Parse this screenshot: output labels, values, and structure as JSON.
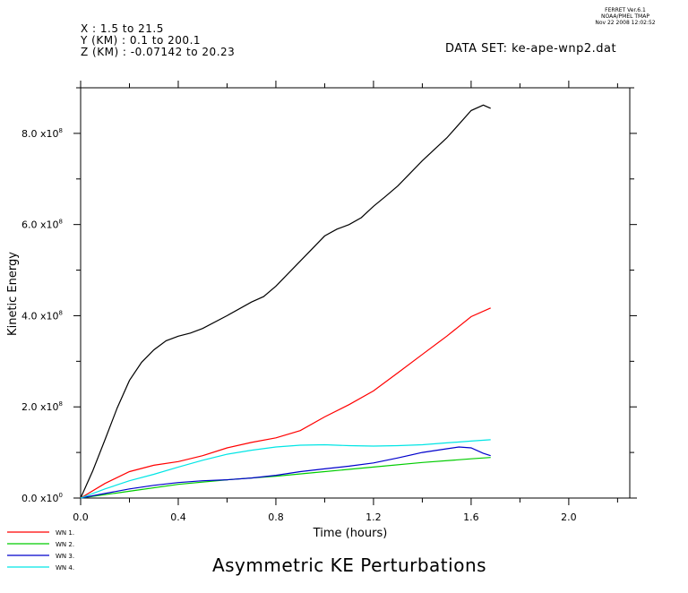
{
  "stamp": {
    "line1": "FERRET Ver.6.1",
    "line2": "NOAA/PMEL TMAP",
    "line3": "Nov 22 2008 12:02:52"
  },
  "header": {
    "x_range": "X : 1.5 to 21.5",
    "y_range": "Y (KM) : 0.1 to 200.1",
    "z_range": "Z (KM) : -0.07142 to 20.23",
    "dataset": "DATA SET: ke-ape-wnp2.dat"
  },
  "chart_data": {
    "type": "line",
    "title": "Asymmetric KE Perturbations",
    "xlabel": "Time (hours)",
    "ylabel": "Kinetic Energy",
    "xlim": [
      0.0,
      2.25
    ],
    "ylim": [
      0.0,
      900000000.0
    ],
    "x_ticks": [
      "0.0",
      "0.4",
      "0.8",
      "1.2",
      "1.6",
      "2.0"
    ],
    "x_tick_values": [
      0.0,
      0.4,
      0.8,
      1.2,
      1.6,
      2.0
    ],
    "y_ticks": [
      {
        "mant": "0.0 x10",
        "exp": "0",
        "value": 0
      },
      {
        "mant": "2.0 x10",
        "exp": "8",
        "value": 200000000.0
      },
      {
        "mant": "4.0 x10",
        "exp": "8",
        "value": 400000000.0
      },
      {
        "mant": "6.0 x10",
        "exp": "8",
        "value": 600000000.0
      },
      {
        "mant": "8.0 x10",
        "exp": "8",
        "value": 800000000.0
      }
    ],
    "series": [
      {
        "name": "",
        "color": "#000000",
        "x": [
          0.0,
          0.05,
          0.1,
          0.15,
          0.2,
          0.25,
          0.3,
          0.35,
          0.4,
          0.45,
          0.5,
          0.6,
          0.7,
          0.75,
          0.8,
          0.9,
          1.0,
          1.05,
          1.1,
          1.15,
          1.2,
          1.25,
          1.3,
          1.4,
          1.5,
          1.6,
          1.65,
          1.68
        ],
        "y": [
          0.0,
          60000000.0,
          128000000.0,
          198000000.0,
          258000000.0,
          298000000.0,
          325000000.0,
          345000000.0,
          355000000.0,
          362000000.0,
          372000000.0,
          400000000.0,
          430000000.0,
          442000000.0,
          465000000.0,
          520000000.0,
          575000000.0,
          590000000.0,
          600000000.0,
          615000000.0,
          640000000.0,
          662000000.0,
          685000000.0,
          740000000.0,
          790000000.0,
          850000000.0,
          862000000.0,
          855000000.0
        ]
      },
      {
        "name": "WN 1.",
        "color": "#ff0000",
        "x": [
          0.0,
          0.1,
          0.2,
          0.3,
          0.4,
          0.5,
          0.6,
          0.7,
          0.8,
          0.9,
          1.0,
          1.1,
          1.2,
          1.3,
          1.4,
          1.5,
          1.6,
          1.68
        ],
        "y": [
          0.0,
          32000000.0,
          58000000.0,
          72000000.0,
          80000000.0,
          93000000.0,
          110000000.0,
          122000000.0,
          132000000.0,
          148000000.0,
          178000000.0,
          205000000.0,
          235000000.0,
          275000000.0,
          315000000.0,
          355000000.0,
          398000000.0,
          417000000.0
        ]
      },
      {
        "name": "WN 2.",
        "color": "#00cc00",
        "x": [
          0.0,
          0.2,
          0.4,
          0.6,
          0.8,
          1.0,
          1.2,
          1.4,
          1.6,
          1.68
        ],
        "y": [
          0.0,
          15000000.0,
          30000000.0,
          40000000.0,
          48000000.0,
          58000000.0,
          68000000.0,
          78000000.0,
          86000000.0,
          89000000.0
        ]
      },
      {
        "name": "WN 3.",
        "color": "#0000cc",
        "x": [
          0.0,
          0.1,
          0.2,
          0.3,
          0.4,
          0.5,
          0.6,
          0.7,
          0.8,
          0.9,
          1.0,
          1.1,
          1.2,
          1.3,
          1.4,
          1.5,
          1.55,
          1.6,
          1.65,
          1.68
        ],
        "y": [
          0.0,
          10000000.0,
          20000000.0,
          28000000.0,
          34000000.0,
          38000000.0,
          40000000.0,
          44000000.0,
          50000000.0,
          58000000.0,
          64000000.0,
          70000000.0,
          77000000.0,
          88000000.0,
          100000000.0,
          108000000.0,
          112000000.0,
          110000000.0,
          98000000.0,
          93000000.0
        ]
      },
      {
        "name": "WN 4.",
        "color": "#00e5e5",
        "x": [
          0.0,
          0.1,
          0.2,
          0.3,
          0.4,
          0.5,
          0.6,
          0.7,
          0.8,
          0.9,
          1.0,
          1.1,
          1.2,
          1.3,
          1.4,
          1.5,
          1.6,
          1.68
        ],
        "y": [
          0.0,
          20000000.0,
          38000000.0,
          52000000.0,
          68000000.0,
          83000000.0,
          96000000.0,
          105000000.0,
          112000000.0,
          116000000.0,
          117000000.0,
          115000000.0,
          114000000.0,
          115000000.0,
          117000000.0,
          121000000.0,
          125000000.0,
          128000000.0
        ]
      }
    ]
  }
}
